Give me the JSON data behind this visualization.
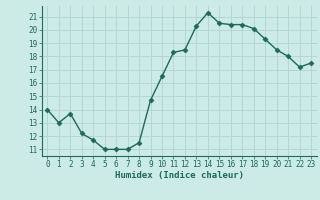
{
  "x": [
    0,
    1,
    2,
    3,
    4,
    5,
    6,
    7,
    8,
    9,
    10,
    11,
    12,
    13,
    14,
    15,
    16,
    17,
    18,
    19,
    20,
    21,
    22,
    23
  ],
  "y": [
    14,
    13,
    13.7,
    12.2,
    11.7,
    11,
    11,
    11,
    11.5,
    14.7,
    16.5,
    18.3,
    18.5,
    20.3,
    21.3,
    20.5,
    20.4,
    20.4,
    20.1,
    19.3,
    18.5,
    18,
    17.2,
    17.5
  ],
  "line_color": "#1a6b5a",
  "bg_color": "#cceae6",
  "grid_color": "#b0d4d0",
  "axis_color": "#1a6b5a",
  "xlabel": "Humidex (Indice chaleur)",
  "ylim": [
    10.5,
    21.8
  ],
  "xlim": [
    -0.5,
    23.5
  ],
  "yticks": [
    11,
    12,
    13,
    14,
    15,
    16,
    17,
    18,
    19,
    20,
    21
  ],
  "xticks": [
    0,
    1,
    2,
    3,
    4,
    5,
    6,
    7,
    8,
    9,
    10,
    11,
    12,
    13,
    14,
    15,
    16,
    17,
    18,
    19,
    20,
    21,
    22,
    23
  ],
  "font_color": "#1a6b5a",
  "marker": "D",
  "markersize": 2.5,
  "linewidth": 1.0,
  "tick_fontsize": 5.5,
  "xlabel_fontsize": 6.5
}
